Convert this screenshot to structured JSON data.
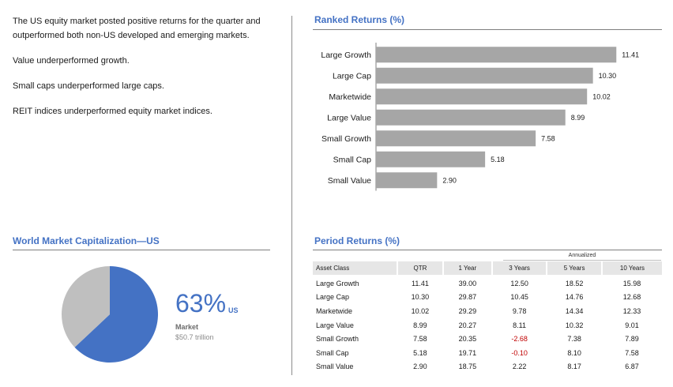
{
  "summary": {
    "p1": "The US equity market posted positive returns for the quarter and outperformed both non-US developed and emerging markets.",
    "p2": "Value underperformed growth.",
    "p3": "Small caps underperformed large caps.",
    "p4": "REIT indices underperformed equity market indices."
  },
  "ranked": {
    "title": "Ranked Returns (%)"
  },
  "market_cap": {
    "title": "World Market Capitalization—US",
    "percent_text": "63%",
    "percent_suffix": "US",
    "market_label": "Market",
    "market_value": "$50.7 trillion"
  },
  "period": {
    "title": "Period Returns (%)",
    "annualized_label": "Annualized",
    "columns": [
      "Asset Class",
      "QTR",
      "1 Year",
      "3 Years",
      "5 Years",
      "10 Years"
    ],
    "rows": [
      [
        "Large Growth",
        "11.41",
        "39.00",
        "12.50",
        "18.52",
        "15.98"
      ],
      [
        "Large Cap",
        "10.30",
        "29.87",
        "10.45",
        "14.76",
        "12.68"
      ],
      [
        "Marketwide",
        "10.02",
        "29.29",
        "9.78",
        "14.34",
        "12.33"
      ],
      [
        "Large Value",
        "8.99",
        "20.27",
        "8.11",
        "10.32",
        "9.01"
      ],
      [
        "Small Growth",
        "7.58",
        "20.35",
        "-2.68",
        "7.38",
        "7.89"
      ],
      [
        "Small Cap",
        "5.18",
        "19.71",
        "-0.10",
        "8.10",
        "7.58"
      ],
      [
        "Small Value",
        "2.90",
        "18.75",
        "2.22",
        "8.17",
        "6.87"
      ]
    ]
  },
  "colors": {
    "accent": "#4472c4",
    "bar": "#a6a6a6",
    "pie_other": "#bfbfbf",
    "negative": "#c00000"
  },
  "chart_data": [
    {
      "type": "bar",
      "orientation": "horizontal",
      "title": "Ranked Returns (%)",
      "categories": [
        "Large Growth",
        "Large Cap",
        "Marketwide",
        "Large Value",
        "Small Growth",
        "Small Cap",
        "Small Value"
      ],
      "values": [
        11.41,
        10.3,
        10.02,
        8.99,
        7.58,
        5.18,
        2.9
      ],
      "value_labels": [
        "11.41",
        "10.30",
        "10.02",
        "8.99",
        "7.58",
        "5.18",
        "2.90"
      ],
      "xlabel": "",
      "ylabel": "",
      "xlim": [
        0,
        12
      ],
      "grid": false,
      "data_labels": true
    },
    {
      "type": "pie",
      "title": "World Market Capitalization—US",
      "slices": [
        {
          "label": "US",
          "value": 63
        },
        {
          "label": "",
          "value": 37
        }
      ]
    },
    {
      "type": "table",
      "title": "Period Returns (%)",
      "columns": [
        "Asset Class",
        "QTR",
        "1 Year",
        "3 Years",
        "5 Years",
        "10 Years"
      ],
      "rows": [
        [
          "Large Growth",
          11.41,
          39.0,
          12.5,
          18.52,
          15.98
        ],
        [
          "Large Cap",
          10.3,
          29.87,
          10.45,
          14.76,
          12.68
        ],
        [
          "Marketwide",
          10.02,
          29.29,
          9.78,
          14.34,
          12.33
        ],
        [
          "Large Value",
          8.99,
          20.27,
          8.11,
          10.32,
          9.01
        ],
        [
          "Small Growth",
          7.58,
          20.35,
          -2.68,
          7.38,
          7.89
        ],
        [
          "Small Cap",
          5.18,
          19.71,
          -0.1,
          8.1,
          7.58
        ],
        [
          "Small Value",
          2.9,
          18.75,
          2.22,
          8.17,
          6.87
        ]
      ]
    }
  ]
}
